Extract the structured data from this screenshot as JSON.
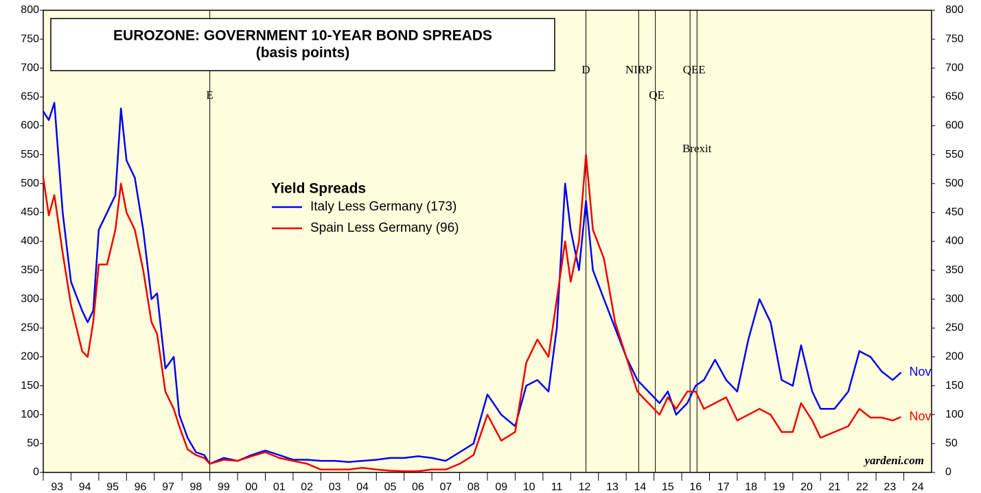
{
  "chart_data": {
    "type": "line",
    "title": "EUROZONE: GOVERNMENT 10-YEAR BOND SPREADS",
    "subtitle": "(basis points)",
    "legend_title": "Yield Spreads",
    "source": "yardeni.com",
    "x": [
      1993.0,
      1993.2,
      1993.4,
      1993.7,
      1994.0,
      1994.4,
      1994.6,
      1994.8,
      1995.0,
      1995.3,
      1995.6,
      1995.8,
      1996.0,
      1996.3,
      1996.6,
      1996.9,
      1997.1,
      1997.4,
      1997.7,
      1997.9,
      1998.2,
      1998.5,
      1998.8,
      1999.0,
      1999.5,
      2000.0,
      2000.5,
      2001.0,
      2001.5,
      2002.0,
      2002.5,
      2003.0,
      2003.5,
      2004.0,
      2004.5,
      2005.0,
      2005.5,
      2006.0,
      2006.5,
      2007.0,
      2007.5,
      2008.0,
      2008.5,
      2009.0,
      2009.5,
      2010.0,
      2010.4,
      2010.8,
      2011.2,
      2011.5,
      2011.8,
      2012.0,
      2012.3,
      2012.55,
      2012.8,
      2013.2,
      2013.6,
      2014.0,
      2014.4,
      2014.8,
      2015.2,
      2015.5,
      2015.8,
      2016.2,
      2016.5,
      2016.8,
      2017.2,
      2017.6,
      2018.0,
      2018.4,
      2018.8,
      2019.2,
      2019.6,
      2020.0,
      2020.3,
      2020.7,
      2021.0,
      2021.5,
      2022.0,
      2022.4,
      2022.8,
      2023.2,
      2023.6,
      2023.9
    ],
    "series": [
      {
        "name": "Italy Less Germany (173)",
        "color": "#0000ee",
        "end_label": "Nov",
        "values": [
          625,
          610,
          640,
          450,
          330,
          280,
          260,
          280,
          420,
          450,
          480,
          630,
          540,
          510,
          420,
          300,
          310,
          180,
          200,
          100,
          60,
          35,
          30,
          15,
          25,
          20,
          30,
          38,
          30,
          22,
          22,
          20,
          20,
          18,
          20,
          22,
          25,
          25,
          28,
          25,
          20,
          35,
          50,
          135,
          100,
          80,
          150,
          160,
          140,
          250,
          500,
          420,
          350,
          470,
          350,
          300,
          250,
          200,
          160,
          140,
          120,
          140,
          100,
          120,
          150,
          160,
          195,
          160,
          140,
          230,
          300,
          260,
          160,
          150,
          220,
          140,
          110,
          110,
          140,
          210,
          200,
          175,
          160,
          173
        ]
      },
      {
        "name": "Spain Less Germany (96)",
        "color": "#ee0000",
        "end_label": "Nov",
        "values": [
          510,
          445,
          480,
          380,
          290,
          210,
          200,
          260,
          360,
          360,
          420,
          500,
          450,
          420,
          350,
          260,
          240,
          140,
          110,
          80,
          40,
          30,
          25,
          15,
          22,
          20,
          28,
          35,
          25,
          20,
          15,
          5,
          5,
          5,
          8,
          5,
          3,
          2,
          2,
          5,
          5,
          15,
          30,
          100,
          55,
          70,
          190,
          230,
          200,
          300,
          400,
          330,
          400,
          550,
          420,
          370,
          260,
          200,
          140,
          120,
          100,
          130,
          110,
          140,
          140,
          110,
          120,
          130,
          90,
          100,
          110,
          100,
          70,
          70,
          120,
          90,
          60,
          70,
          80,
          110,
          95,
          95,
          90,
          96
        ]
      }
    ],
    "annotations": [
      {
        "x": 1999.0,
        "label": "E"
      },
      {
        "x": 2012.55,
        "label": "D"
      },
      {
        "x": 2014.45,
        "label": "NIRP"
      },
      {
        "x": 2015.05,
        "label": "QE"
      },
      {
        "x": 2016.3,
        "label": "Brexit"
      },
      {
        "x": 2016.55,
        "label": "QEE"
      }
    ],
    "xlim": [
      1993,
      2025
    ],
    "xticks": [
      {
        "value": 1993.5,
        "label": "93"
      },
      {
        "value": 1994.5,
        "label": "94"
      },
      {
        "value": 1995.5,
        "label": "95"
      },
      {
        "value": 1996.5,
        "label": "96"
      },
      {
        "value": 1997.5,
        "label": "97"
      },
      {
        "value": 1998.5,
        "label": "98"
      },
      {
        "value": 1999.5,
        "label": "99"
      },
      {
        "value": 2000.5,
        "label": "00"
      },
      {
        "value": 2001.5,
        "label": "01"
      },
      {
        "value": 2002.5,
        "label": "02"
      },
      {
        "value": 2003.5,
        "label": "03"
      },
      {
        "value": 2004.5,
        "label": "04"
      },
      {
        "value": 2005.5,
        "label": "05"
      },
      {
        "value": 2006.5,
        "label": "06"
      },
      {
        "value": 2007.5,
        "label": "07"
      },
      {
        "value": 2008.5,
        "label": "08"
      },
      {
        "value": 2009.5,
        "label": "09"
      },
      {
        "value": 2010.5,
        "label": "10"
      },
      {
        "value": 2011.5,
        "label": "11"
      },
      {
        "value": 2012.5,
        "label": "12"
      },
      {
        "value": 2013.5,
        "label": "13"
      },
      {
        "value": 2014.5,
        "label": "14"
      },
      {
        "value": 2015.5,
        "label": "15"
      },
      {
        "value": 2016.5,
        "label": "16"
      },
      {
        "value": 2017.5,
        "label": "17"
      },
      {
        "value": 2018.5,
        "label": "18"
      },
      {
        "value": 2019.5,
        "label": "19"
      },
      {
        "value": 2020.5,
        "label": "20"
      },
      {
        "value": 2021.5,
        "label": "21"
      },
      {
        "value": 2022.5,
        "label": "22"
      },
      {
        "value": 2023.5,
        "label": "23"
      },
      {
        "value": 2024.5,
        "label": "24"
      }
    ],
    "ylim": [
      0,
      800
    ],
    "yticks": [
      0,
      50,
      100,
      150,
      200,
      250,
      300,
      350,
      400,
      450,
      500,
      550,
      600,
      650,
      700,
      750,
      800
    ],
    "background": "#ffffdd"
  }
}
